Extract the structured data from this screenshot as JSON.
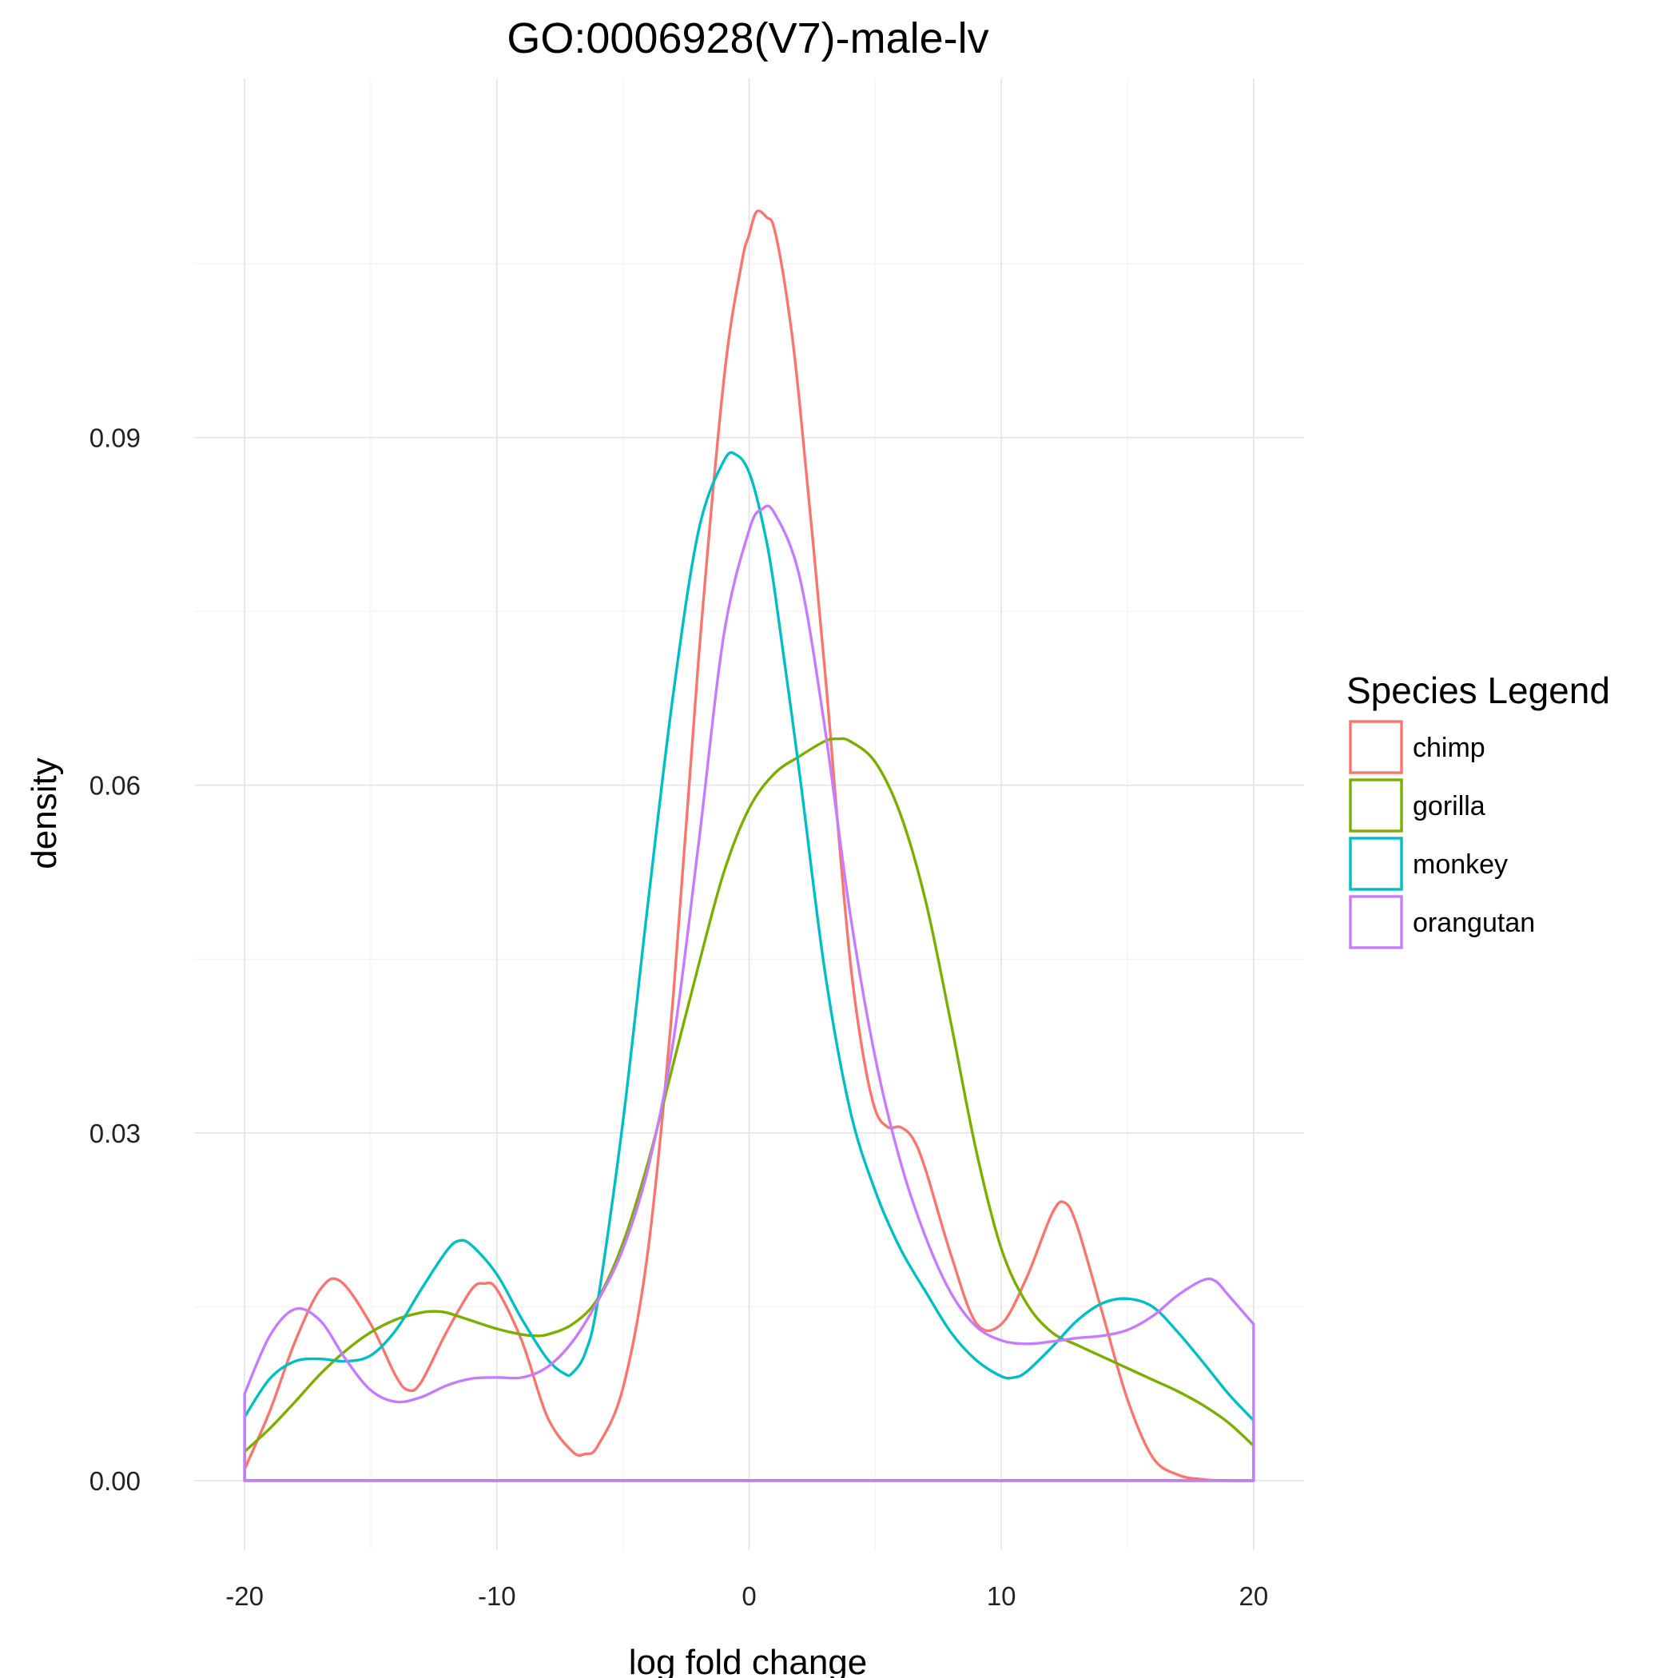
{
  "chart_data": {
    "type": "line",
    "title": "GO:0006928(V7)-male-lv",
    "xlabel": "log fold change",
    "ylabel": "density",
    "xlim": [
      -22,
      22
    ],
    "ylim": [
      -0.006,
      0.121
    ],
    "x_ticks": [
      -20,
      -10,
      0,
      10,
      20
    ],
    "x_tick_labels": [
      "-20",
      "-10",
      "0",
      "10",
      "20"
    ],
    "y_ticks": [
      0.0,
      0.03,
      0.06,
      0.09
    ],
    "y_tick_labels": [
      "0.00",
      "0.03",
      "0.06",
      "0.09"
    ],
    "grid": true,
    "legend": {
      "title": "Species Legend",
      "position": "right"
    },
    "series": [
      {
        "name": "chimp",
        "color": "#F8766D",
        "x": [
          -20,
          -19,
          -18,
          -17,
          -16.2,
          -15,
          -14,
          -13.5,
          -13,
          -12,
          -11,
          -10.5,
          -10,
          -9,
          -8,
          -7,
          -6.5,
          -6,
          -5,
          -4,
          -3,
          -2,
          -1,
          -0.3,
          0,
          0.3,
          0.7,
          1,
          1.5,
          2,
          3,
          3.5,
          4,
          4.5,
          5,
          5.5,
          6,
          6.5,
          7,
          8,
          9,
          10,
          11,
          12,
          12.5,
          13,
          14,
          15,
          16,
          17,
          18,
          19,
          20
        ],
        "values": [
          0.001,
          0.006,
          0.012,
          0.0165,
          0.0172,
          0.0135,
          0.009,
          0.0078,
          0.0085,
          0.0128,
          0.0165,
          0.017,
          0.0165,
          0.012,
          0.0055,
          0.0025,
          0.0023,
          0.003,
          0.008,
          0.02,
          0.042,
          0.071,
          0.095,
          0.105,
          0.1075,
          0.1095,
          0.109,
          0.108,
          0.102,
          0.093,
          0.07,
          0.057,
          0.045,
          0.037,
          0.032,
          0.0305,
          0.0305,
          0.0295,
          0.0268,
          0.0195,
          0.0136,
          0.0135,
          0.0175,
          0.023,
          0.024,
          0.022,
          0.0145,
          0.007,
          0.002,
          0.0005,
          0.0001,
          0.0,
          0.0
        ]
      },
      {
        "name": "gorilla",
        "color": "#7CAE00",
        "x": [
          -20,
          -19,
          -18,
          -17,
          -16,
          -15,
          -14,
          -13,
          -12.5,
          -12,
          -11,
          -10,
          -9,
          -8.5,
          -8,
          -7,
          -6,
          -5,
          -4,
          -3,
          -2,
          -1,
          0,
          1,
          2,
          3,
          3.5,
          4,
          5,
          6,
          7,
          8,
          9,
          10,
          11,
          12,
          13,
          14,
          15,
          16,
          17,
          18,
          19,
          20
        ],
        "values": [
          0.0025,
          0.0045,
          0.0068,
          0.0092,
          0.0112,
          0.0128,
          0.0139,
          0.0145,
          0.0146,
          0.0145,
          0.0138,
          0.0131,
          0.0126,
          0.0125,
          0.0126,
          0.0135,
          0.0157,
          0.0205,
          0.0275,
          0.036,
          0.0445,
          0.0525,
          0.058,
          0.061,
          0.0625,
          0.0638,
          0.064,
          0.0638,
          0.062,
          0.0575,
          0.05,
          0.0395,
          0.0285,
          0.02,
          0.0153,
          0.0128,
          0.0117,
          0.0107,
          0.0097,
          0.0087,
          0.0077,
          0.0065,
          0.005,
          0.003
        ]
      },
      {
        "name": "monkey",
        "color": "#00BFC4",
        "x": [
          -20,
          -19,
          -18,
          -17,
          -16,
          -15,
          -14,
          -13,
          -12,
          -11.5,
          -11,
          -10,
          -9,
          -8,
          -7.3,
          -7,
          -6.5,
          -6,
          -5,
          -4,
          -3,
          -2,
          -1,
          -0.5,
          0,
          0.5,
          1,
          2,
          3,
          4,
          5,
          6,
          7,
          8,
          9,
          10,
          10.5,
          11,
          12,
          13,
          14,
          15,
          16,
          17,
          18,
          19,
          20
        ],
        "values": [
          0.0055,
          0.0088,
          0.0103,
          0.0105,
          0.0103,
          0.0108,
          0.013,
          0.0165,
          0.0198,
          0.0207,
          0.0203,
          0.0178,
          0.0139,
          0.0105,
          0.0092,
          0.0093,
          0.011,
          0.0155,
          0.031,
          0.05,
          0.068,
          0.082,
          0.088,
          0.0885,
          0.087,
          0.083,
          0.077,
          0.061,
          0.044,
          0.032,
          0.025,
          0.02,
          0.0163,
          0.0128,
          0.0104,
          0.009,
          0.0089,
          0.0094,
          0.0115,
          0.0138,
          0.0153,
          0.0157,
          0.015,
          0.0128,
          0.0102,
          0.0075,
          0.0052
        ]
      },
      {
        "name": "orangutan",
        "color": "#C77CFF",
        "x": [
          -20,
          -19,
          -18,
          -17,
          -16,
          -15,
          -14,
          -13,
          -12,
          -11,
          -10,
          -9,
          -8,
          -7,
          -6,
          -5,
          -4,
          -3,
          -2,
          -1,
          0,
          0.5,
          1,
          2,
          3,
          4,
          5,
          6,
          7,
          8,
          9,
          10,
          11,
          12,
          13,
          14,
          15,
          16,
          17,
          18,
          18.5,
          19,
          20
        ],
        "values": [
          0.0075,
          0.0125,
          0.0148,
          0.0138,
          0.0105,
          0.0078,
          0.0068,
          0.0072,
          0.0082,
          0.0088,
          0.0089,
          0.0089,
          0.0098,
          0.012,
          0.0155,
          0.02,
          0.027,
          0.038,
          0.055,
          0.073,
          0.082,
          0.0838,
          0.0835,
          0.078,
          0.065,
          0.049,
          0.0365,
          0.0275,
          0.021,
          0.0162,
          0.0133,
          0.0121,
          0.0118,
          0.012,
          0.0123,
          0.0125,
          0.013,
          0.0142,
          0.016,
          0.0173,
          0.0172,
          0.016,
          0.0135
        ]
      }
    ]
  }
}
